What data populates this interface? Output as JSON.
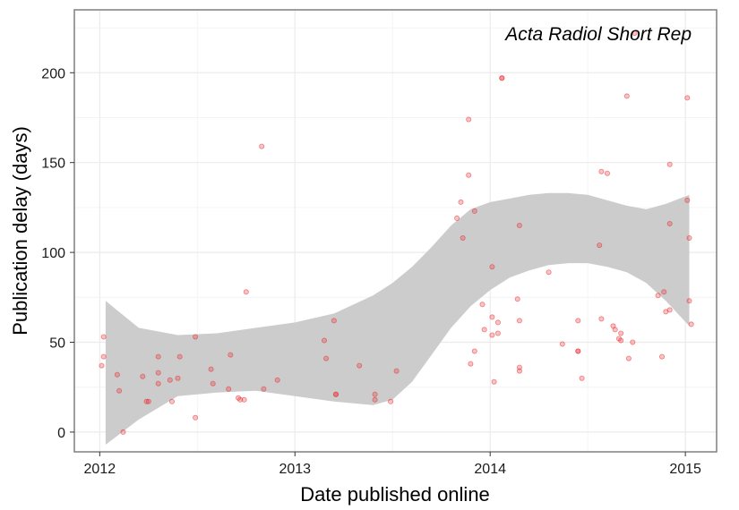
{
  "chart_data": {
    "type": "scatter",
    "title": "",
    "annotation": "Acta Radiol Short Rep",
    "xlabel": "Date published online",
    "ylabel": "Publication delay (days)",
    "x_unit": "year",
    "xlim": [
      2011.87,
      2015.16
    ],
    "ylim": [
      -11,
      235
    ],
    "x_ticks": [
      2012,
      2013,
      2014,
      2015
    ],
    "x_tick_labels": [
      "2012",
      "2013",
      "2014",
      "2015"
    ],
    "y_ticks": [
      0,
      50,
      100,
      150,
      200
    ],
    "y_tick_labels": [
      "0",
      "50",
      "100",
      "150",
      "200"
    ],
    "grid": true,
    "legend": "none",
    "colors": {
      "points": "#e8262b",
      "band": "#cccccc",
      "panel_border": "#7f7f7f",
      "grid_major": "#ebebeb",
      "grid_minor": "#f4f4f4"
    },
    "points": [
      [
        2012.01,
        37
      ],
      [
        2012.02,
        42
      ],
      [
        2012.02,
        53
      ],
      [
        2012.09,
        32
      ],
      [
        2012.1,
        23
      ],
      [
        2012.12,
        0
      ],
      [
        2012.22,
        31
      ],
      [
        2012.24,
        17
      ],
      [
        2012.25,
        17
      ],
      [
        2012.3,
        42
      ],
      [
        2012.3,
        33
      ],
      [
        2012.3,
        27
      ],
      [
        2012.36,
        29
      ],
      [
        2012.37,
        17
      ],
      [
        2012.4,
        30
      ],
      [
        2012.41,
        42
      ],
      [
        2012.49,
        8
      ],
      [
        2012.49,
        53
      ],
      [
        2012.57,
        35
      ],
      [
        2012.58,
        27
      ],
      [
        2012.66,
        24
      ],
      [
        2012.67,
        43
      ],
      [
        2012.71,
        19
      ],
      [
        2012.72,
        18
      ],
      [
        2012.74,
        18
      ],
      [
        2012.75,
        78
      ],
      [
        2012.83,
        159
      ],
      [
        2012.84,
        24
      ],
      [
        2012.91,
        29
      ],
      [
        2013.15,
        51
      ],
      [
        2013.16,
        41
      ],
      [
        2013.2,
        62
      ],
      [
        2013.21,
        21
      ],
      [
        2013.21,
        21
      ],
      [
        2013.33,
        37
      ],
      [
        2013.41,
        18
      ],
      [
        2013.41,
        21
      ],
      [
        2013.49,
        17
      ],
      [
        2013.52,
        34
      ],
      [
        2013.83,
        119
      ],
      [
        2013.85,
        128
      ],
      [
        2013.86,
        108
      ],
      [
        2013.89,
        174
      ],
      [
        2013.89,
        143
      ],
      [
        2013.9,
        38
      ],
      [
        2013.92,
        45
      ],
      [
        2013.92,
        123
      ],
      [
        2013.96,
        71
      ],
      [
        2013.97,
        57
      ],
      [
        2014.01,
        92
      ],
      [
        2014.01,
        64
      ],
      [
        2014.01,
        54
      ],
      [
        2014.02,
        28
      ],
      [
        2014.04,
        61
      ],
      [
        2014.04,
        55
      ],
      [
        2014.06,
        197
      ],
      [
        2014.06,
        197
      ],
      [
        2014.14,
        74
      ],
      [
        2014.15,
        34
      ],
      [
        2014.15,
        36
      ],
      [
        2014.15,
        62
      ],
      [
        2014.15,
        115
      ],
      [
        2014.3,
        89
      ],
      [
        2014.37,
        49
      ],
      [
        2014.45,
        45
      ],
      [
        2014.45,
        45
      ],
      [
        2014.45,
        62
      ],
      [
        2014.47,
        30
      ],
      [
        2014.56,
        104
      ],
      [
        2014.57,
        63
      ],
      [
        2014.57,
        145
      ],
      [
        2014.6,
        144
      ],
      [
        2014.63,
        59
      ],
      [
        2014.64,
        57
      ],
      [
        2014.66,
        52
      ],
      [
        2014.67,
        55
      ],
      [
        2014.67,
        51
      ],
      [
        2014.7,
        187
      ],
      [
        2014.71,
        41
      ],
      [
        2014.73,
        50
      ],
      [
        2014.74,
        222
      ],
      [
        2014.86,
        76
      ],
      [
        2014.88,
        42
      ],
      [
        2014.89,
        78
      ],
      [
        2014.9,
        67
      ],
      [
        2014.92,
        68
      ],
      [
        2014.92,
        149
      ],
      [
        2014.92,
        116
      ],
      [
        2015.01,
        186
      ],
      [
        2015.01,
        129
      ],
      [
        2015.02,
        108
      ],
      [
        2015.02,
        73
      ],
      [
        2015.03,
        60
      ]
    ],
    "smooth_band": {
      "x": [
        2012.03,
        2012.2,
        2012.4,
        2012.6,
        2012.8,
        2013.0,
        2013.2,
        2013.4,
        2013.5,
        2013.6,
        2013.7,
        2013.8,
        2013.9,
        2014.0,
        2014.1,
        2014.2,
        2014.3,
        2014.4,
        2014.5,
        2014.6,
        2014.7,
        2014.8,
        2014.9,
        2015.02
      ],
      "upper": [
        73,
        58,
        54,
        55,
        58,
        61,
        66,
        76,
        83,
        92,
        103,
        115,
        124,
        128,
        130,
        132,
        133,
        133,
        132,
        129,
        126,
        124,
        127,
        132
      ],
      "lower": [
        -7,
        7,
        20,
        22,
        23,
        20,
        17,
        15,
        18,
        28,
        43,
        58,
        70,
        79,
        86,
        90,
        93,
        94,
        94,
        92,
        89,
        83,
        73,
        59
      ]
    }
  }
}
